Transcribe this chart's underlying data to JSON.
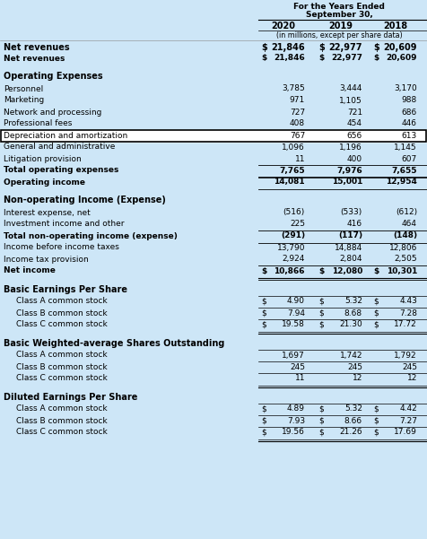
{
  "title_line1": "For the Years Ended",
  "title_line2": "September 30,",
  "col_headers": [
    "2020",
    "2019",
    "2018"
  ],
  "sub_header": "(in millions, except per share data)",
  "bg_color": "#cde6f7",
  "rows": [
    {
      "label": "Net revenues",
      "v1": "$ 21,846",
      "v2": "$ 22,977",
      "v3": "$ 20,609",
      "bold": true,
      "style": "net_rev",
      "indent": 0
    },
    {
      "label": "",
      "v1": "",
      "v2": "",
      "v3": "",
      "bold": false,
      "style": "spacer",
      "indent": 0
    },
    {
      "label": "Operating Expenses",
      "v1": "",
      "v2": "",
      "v3": "",
      "bold": true,
      "style": "section",
      "indent": 0
    },
    {
      "label": "Personnel",
      "v1": "3,785",
      "v2": "3,444",
      "v3": "3,170",
      "bold": false,
      "style": "normal",
      "indent": 0
    },
    {
      "label": "Marketing",
      "v1": "971",
      "v2": "1,105",
      "v3": "988",
      "bold": false,
      "style": "normal",
      "indent": 0
    },
    {
      "label": "Network and processing",
      "v1": "727",
      "v2": "721",
      "v3": "686",
      "bold": false,
      "style": "normal",
      "indent": 0
    },
    {
      "label": "Professional fees",
      "v1": "408",
      "v2": "454",
      "v3": "446",
      "bold": false,
      "style": "normal",
      "indent": 0
    },
    {
      "label": "Depreciation and amortization",
      "v1": "767",
      "v2": "656",
      "v3": "613",
      "bold": false,
      "style": "highlight",
      "indent": 0
    },
    {
      "label": "General and administrative",
      "v1": "1,096",
      "v2": "1,196",
      "v3": "1,145",
      "bold": false,
      "style": "normal",
      "indent": 0
    },
    {
      "label": "Litigation provision",
      "v1": "11",
      "v2": "400",
      "v3": "607",
      "bold": false,
      "style": "normal",
      "indent": 0
    },
    {
      "label": "Total operating expenses",
      "v1": "7,765",
      "v2": "7,976",
      "v3": "7,655",
      "bold": true,
      "style": "subtotal",
      "indent": 0
    },
    {
      "label": "Operating income",
      "v1": "14,081",
      "v2": "15,001",
      "v3": "12,954",
      "bold": true,
      "style": "subtotal",
      "indent": 0
    },
    {
      "label": "",
      "v1": "",
      "v2": "",
      "v3": "",
      "bold": false,
      "style": "spacer",
      "indent": 0
    },
    {
      "label": "Non-operating Income (Expense)",
      "v1": "",
      "v2": "",
      "v3": "",
      "bold": true,
      "style": "section",
      "indent": 0
    },
    {
      "label": "Interest expense, net",
      "v1": "(516)",
      "v2": "(533)",
      "v3": "(612)",
      "bold": false,
      "style": "normal",
      "indent": 0
    },
    {
      "label": "Investment income and other",
      "v1": "225",
      "v2": "416",
      "v3": "464",
      "bold": false,
      "style": "normal",
      "indent": 0
    },
    {
      "label": "Total non-operating income (expense)",
      "v1": "(291)",
      "v2": "(117)",
      "v3": "(148)",
      "bold": true,
      "style": "subtotal",
      "indent": 0
    },
    {
      "label": "Income before income taxes",
      "v1": "13,790",
      "v2": "14,884",
      "v3": "12,806",
      "bold": false,
      "style": "normal",
      "indent": 0
    },
    {
      "label": "Income tax provision",
      "v1": "2,924",
      "v2": "2,804",
      "v3": "2,505",
      "bold": false,
      "style": "normal",
      "indent": 0
    },
    {
      "label": "Net income",
      "v1": "$ 10,866",
      "v2": "$ 12,080",
      "v3": "$ 10,301",
      "bold": true,
      "style": "total",
      "indent": 0
    },
    {
      "label": "",
      "v1": "",
      "v2": "",
      "v3": "",
      "bold": false,
      "style": "spacer",
      "indent": 0
    },
    {
      "label": "Basic Earnings Per Share",
      "v1": "",
      "v2": "",
      "v3": "",
      "bold": true,
      "style": "section",
      "indent": 0
    },
    {
      "label": "Class A common stock",
      "v1": "$ 4.90",
      "v2": "$ 5.32",
      "v3": "$ 4.43",
      "bold": false,
      "style": "eps",
      "indent": 1
    },
    {
      "label": "Class B common stock",
      "v1": "$ 7.94",
      "v2": "$ 8.68",
      "v3": "$ 7.28",
      "bold": false,
      "style": "eps",
      "indent": 1
    },
    {
      "label": "Class C common stock",
      "v1": "$ 19.58",
      "v2": "$ 21.30",
      "v3": "$ 17.72",
      "bold": false,
      "style": "eps_last",
      "indent": 1
    },
    {
      "label": "",
      "v1": "",
      "v2": "",
      "v3": "",
      "bold": false,
      "style": "spacer",
      "indent": 0
    },
    {
      "label": "Basic Weighted-average Shares Outstanding",
      "v1": "",
      "v2": "",
      "v3": "",
      "bold": true,
      "style": "section",
      "indent": 0
    },
    {
      "label": "Class A common stock",
      "v1": "1,697",
      "v2": "1,742",
      "v3": "1,792",
      "bold": false,
      "style": "wso",
      "indent": 1
    },
    {
      "label": "Class B common stock",
      "v1": "245",
      "v2": "245",
      "v3": "245",
      "bold": false,
      "style": "wso",
      "indent": 1
    },
    {
      "label": "Class C common stock",
      "v1": "11",
      "v2": "12",
      "v3": "12",
      "bold": false,
      "style": "wso_last",
      "indent": 1
    },
    {
      "label": "",
      "v1": "",
      "v2": "",
      "v3": "",
      "bold": false,
      "style": "spacer",
      "indent": 0
    },
    {
      "label": "Diluted Earnings Per Share",
      "v1": "",
      "v2": "",
      "v3": "",
      "bold": true,
      "style": "section",
      "indent": 0
    },
    {
      "label": "Class A common stock",
      "v1": "$ 4.89",
      "v2": "$ 5.32",
      "v3": "$ 4.42",
      "bold": false,
      "style": "eps",
      "indent": 1
    },
    {
      "label": "Class B common stock",
      "v1": "$ 7.93",
      "v2": "$ 8.66",
      "v3": "$ 7.27",
      "bold": false,
      "style": "eps",
      "indent": 1
    },
    {
      "label": "Class C common stock",
      "v1": "$ 19.56",
      "v2": "$ 21.26",
      "v3": "$ 17.69",
      "bold": false,
      "style": "eps_last",
      "indent": 1
    }
  ]
}
